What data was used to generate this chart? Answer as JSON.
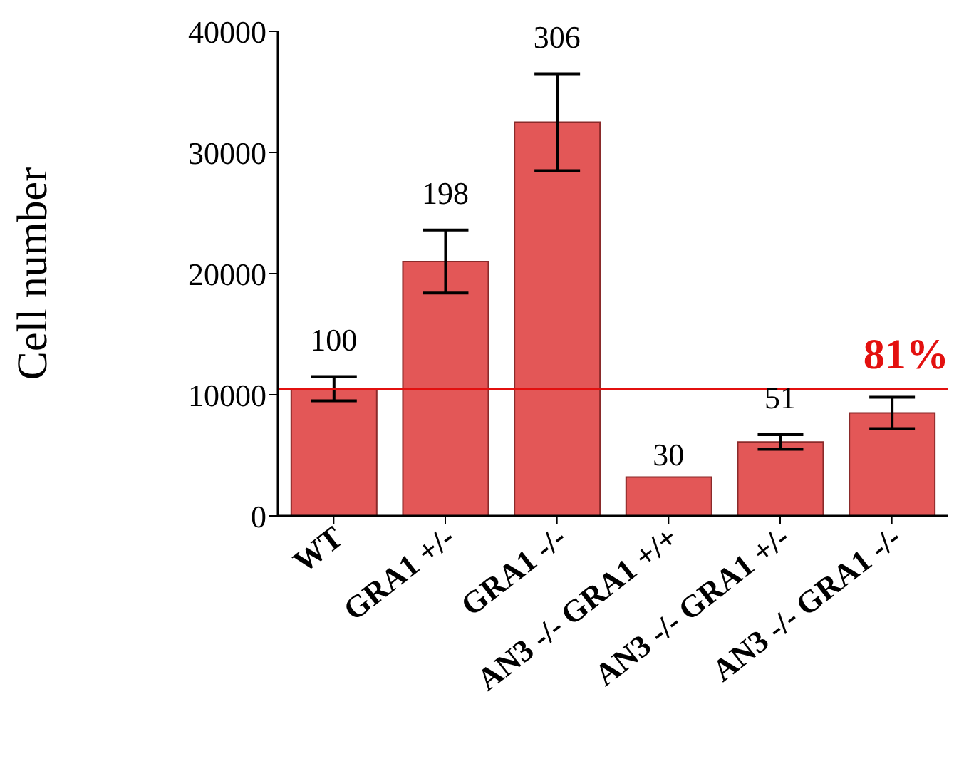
{
  "chart_data": {
    "type": "bar",
    "ylabel": "Cell number",
    "categories": [
      "WT",
      "GRA1 +/-",
      "GRA1 -/-",
      "AN3 -/- GRA1 +/+",
      "AN3 -/- GRA1 +/-",
      "AN3 -/- GRA1 -/-"
    ],
    "values": [
      10500,
      21000,
      32500,
      3200,
      6100,
      8500
    ],
    "errors": [
      1000,
      2600,
      4000,
      null,
      600,
      1300
    ],
    "color": "#e35757",
    "ylim": [
      0,
      40000
    ],
    "yticks": [
      0,
      10000,
      20000,
      30000,
      40000
    ],
    "ref_lines": [
      {
        "axis": "y",
        "value": 10500,
        "color": "#e3100f"
      }
    ],
    "annotations": [
      {
        "text": "100",
        "x": "WT",
        "y": 10500
      },
      {
        "text": "198",
        "x": "GRA1 +/-",
        "y": 21000
      },
      {
        "text": "306",
        "x": "GRA1 -/-",
        "y": 32500
      },
      {
        "text": "30",
        "x": "AN3 -/- GRA1 +/+",
        "y": 3200
      },
      {
        "text": "51",
        "x": "AN3 -/- GRA1 +/-",
        "y": 6100
      },
      {
        "text": "81%",
        "x": "AN3 -/- GRA1 -/-",
        "y": 10500
      }
    ]
  }
}
